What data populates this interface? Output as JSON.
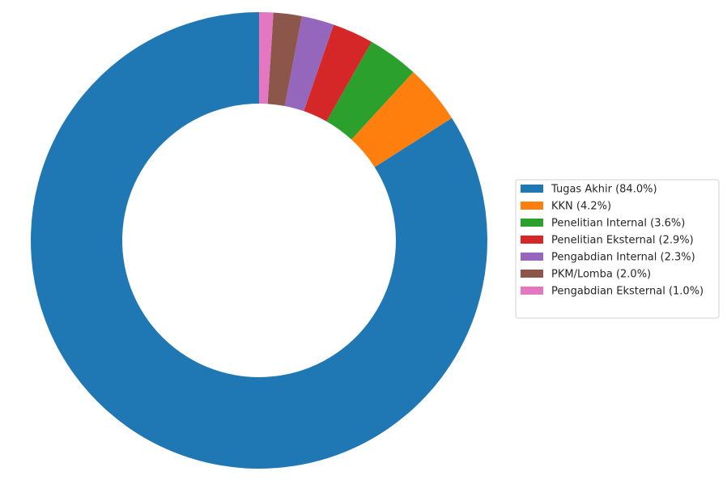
{
  "chart_data": {
    "type": "donut",
    "labels": [
      "Tugas Akhir (84.0%)",
      "KKN (4.2%)",
      "Penelitian Internal (3.6%)",
      "Penelitian Eksternal (2.9%)",
      "Pengabdian Internal (2.3%)",
      "PKM/Lomba (2.0%)",
      "Pengabdian Eksternal (1.0%)"
    ],
    "values": [
      84.0,
      4.2,
      3.6,
      2.9,
      2.3,
      2.0,
      1.0
    ],
    "colors": [
      "#1f77b4",
      "#ff7f0e",
      "#2ca02c",
      "#d62728",
      "#9467bd",
      "#8c564b",
      "#e377c2"
    ],
    "legend": "right"
  }
}
